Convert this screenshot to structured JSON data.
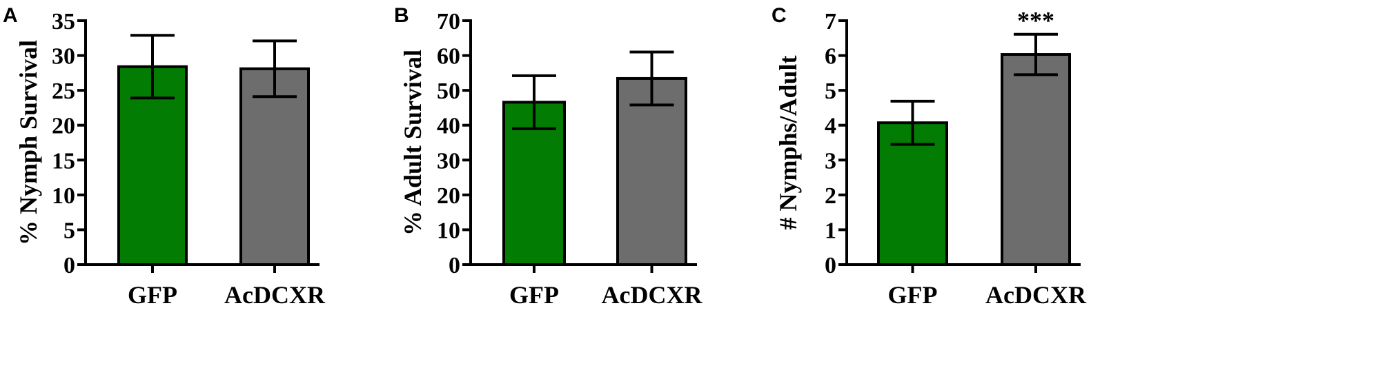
{
  "colors": {
    "GFP": "#037c03",
    "AcDCXR": "#6d6d6d",
    "axis": "#000000"
  },
  "chart_data": [
    {
      "type": "bar",
      "panel": "A",
      "categories": [
        "GFP",
        "AcDCXR"
      ],
      "values": [
        28.4,
        28.1
      ],
      "errors": [
        4.5,
        4.0
      ],
      "ylabel": "% Nymph Survival",
      "ylim": [
        0,
        35
      ],
      "yticks": [
        0,
        5,
        10,
        15,
        20,
        25,
        30,
        35
      ],
      "annotations": [
        "",
        ""
      ]
    },
    {
      "type": "bar",
      "panel": "B",
      "categories": [
        "GFP",
        "AcDCXR"
      ],
      "values": [
        46.6,
        53.4
      ],
      "errors": [
        7.6,
        7.6
      ],
      "ylabel": "% Adult Survival",
      "ylim": [
        0,
        70
      ],
      "yticks": [
        0,
        10,
        20,
        30,
        40,
        50,
        60,
        70
      ],
      "annotations": [
        "",
        ""
      ]
    },
    {
      "type": "bar",
      "panel": "C",
      "categories": [
        "GFP",
        "AcDCXR"
      ],
      "values": [
        4.07,
        6.03
      ],
      "errors": [
        0.62,
        0.58
      ],
      "ylabel": "# Nymphs/Adult",
      "ylim": [
        0,
        7
      ],
      "yticks": [
        0,
        1,
        2,
        3,
        4,
        5,
        6,
        7
      ],
      "annotations": [
        "",
        "***"
      ]
    }
  ]
}
